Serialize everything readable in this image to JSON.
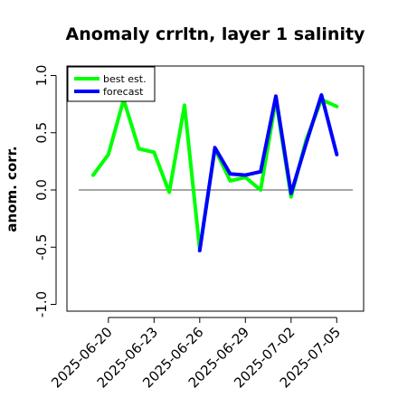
{
  "chart_data": {
    "type": "line",
    "title": "Anomaly crrltn, layer 1 salinity",
    "ylabel": "anom. corr.",
    "xlabel": "",
    "ylim": [
      -1.0,
      1.0
    ],
    "y_ticks": [
      -1.0,
      -0.5,
      0.0,
      0.5,
      1.0
    ],
    "y_tick_labels": [
      "-1.0",
      "-0.5",
      "0.0",
      "0.5",
      "1.0"
    ],
    "x_tick_labels": [
      {
        "label": "2025-06-20",
        "color": "#000000"
      },
      {
        "label": "2025-06-23",
        "color": "#000000"
      },
      {
        "label": "2025-06-26",
        "color": "#228B22"
      },
      {
        "label": "2025-06-29",
        "color": "#000000"
      },
      {
        "label": "2025-07-02",
        "color": "#000000"
      },
      {
        "label": "2025-07-05",
        "color": "#000000"
      }
    ],
    "reference_line": 0.0,
    "legend_position": "top-left",
    "series": [
      {
        "name": "best est.",
        "color": "#00ff00",
        "x": [
          "2025-06-19",
          "2025-06-20",
          "2025-06-21",
          "2025-06-22",
          "2025-06-23",
          "2025-06-24",
          "2025-06-25",
          "2025-06-26",
          "2025-06-27",
          "2025-06-28",
          "2025-06-29",
          "2025-06-30",
          "2025-07-01",
          "2025-07-02",
          "2025-07-03",
          "2025-07-04",
          "2025-07-05"
        ],
        "values": [
          0.13,
          0.31,
          0.79,
          0.36,
          0.33,
          -0.02,
          0.74,
          -0.52,
          0.36,
          0.08,
          0.11,
          0.0,
          0.79,
          -0.06,
          0.44,
          0.79,
          0.73
        ]
      },
      {
        "name": "forecast",
        "color": "#0000ff",
        "x": [
          "2025-06-26",
          "2025-06-27",
          "2025-06-28",
          "2025-06-29",
          "2025-06-30",
          "2025-07-01",
          "2025-07-02",
          "2025-07-03",
          "2025-07-04",
          "2025-07-05"
        ],
        "values": [
          -0.53,
          0.37,
          0.14,
          0.13,
          0.16,
          0.82,
          -0.03,
          0.41,
          0.83,
          0.31
        ]
      }
    ]
  }
}
